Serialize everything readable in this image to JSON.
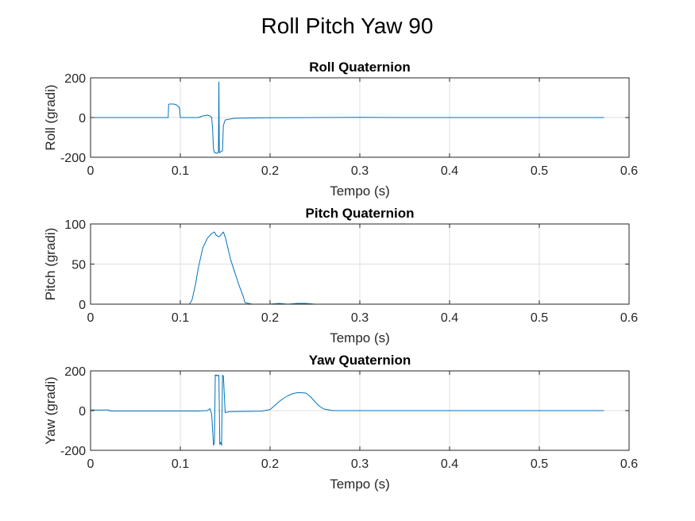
{
  "figure": {
    "title": "Roll Pitch Yaw 90",
    "line_color": "#0072BD"
  },
  "chart_data": [
    {
      "type": "line",
      "title": "Roll Quaternion",
      "xlabel": "Tempo (s)",
      "ylabel": "Roll (gradi)",
      "xlim": [
        0,
        0.6
      ],
      "ylim": [
        -200,
        200
      ],
      "xticks": [
        0,
        0.1,
        0.2,
        0.3,
        0.4,
        0.5,
        0.6
      ],
      "xtick_labels": [
        "0",
        "0.1",
        "0.2",
        "0.3",
        "0.4",
        "0.5",
        "0.6"
      ],
      "yticks": [
        -200,
        0,
        200
      ],
      "ytick_labels": [
        "-200",
        "0",
        "200"
      ],
      "grid": true,
      "series": [
        {
          "x": [
            0,
            0.085,
            0.0865,
            0.087,
            0.0875,
            0.09,
            0.093,
            0.096,
            0.098,
            0.099,
            0.1,
            0.12,
            0.125,
            0.13,
            0.133,
            0.135,
            0.136,
            0.137,
            0.138,
            0.14,
            0.142,
            0.1425,
            0.143,
            0.1435,
            0.144,
            0.145,
            0.146,
            0.147,
            0.148,
            0.15,
            0.155,
            0.16,
            0.18,
            0.2,
            0.25,
            0.3,
            0.35,
            0.4,
            0.45,
            0.5,
            0.55,
            0.572
          ],
          "y": [
            0,
            0,
            0,
            65,
            68,
            68,
            68,
            63,
            55,
            50,
            0,
            0,
            8,
            12,
            8,
            0,
            -60,
            -160,
            -175,
            -180,
            -178,
            -170,
            180,
            -175,
            -178,
            -172,
            -170,
            -165,
            -40,
            -12,
            -8,
            -4,
            -2,
            -1,
            0,
            1,
            0,
            0,
            0,
            0,
            0,
            0
          ]
        }
      ]
    },
    {
      "type": "line",
      "title": "Pitch Quaternion",
      "xlabel": "Tempo (s)",
      "ylabel": "Pitch (gradi)",
      "xlim": [
        0,
        0.6
      ],
      "ylim": [
        0,
        100
      ],
      "xticks": [
        0,
        0.1,
        0.2,
        0.3,
        0.4,
        0.5,
        0.6
      ],
      "xtick_labels": [
        "0",
        "0.1",
        "0.2",
        "0.3",
        "0.4",
        "0.5",
        "0.6"
      ],
      "yticks": [
        0,
        50,
        100
      ],
      "ytick_labels": [
        "0",
        "50",
        "100"
      ],
      "grid": true,
      "series": [
        {
          "x": [
            0,
            0.05,
            0.1,
            0.11,
            0.113,
            0.117,
            0.12,
            0.125,
            0.13,
            0.135,
            0.138,
            0.14,
            0.143,
            0.145,
            0.148,
            0.15,
            0.153,
            0.156,
            0.16,
            0.165,
            0.17,
            0.172,
            0.18,
            0.2,
            0.21,
            0.22,
            0.23,
            0.24,
            0.25,
            0.3,
            0.4,
            0.5,
            0.572
          ],
          "y": [
            0,
            0,
            0,
            0,
            5,
            25,
            45,
            70,
            82,
            88,
            90,
            86,
            84,
            86,
            90,
            84,
            70,
            56,
            42,
            25,
            10,
            2,
            0,
            0,
            1,
            0,
            1,
            1,
            0,
            0,
            0,
            0,
            0
          ]
        }
      ]
    },
    {
      "type": "line",
      "title": "Yaw Quaternion",
      "xlabel": "Tempo (s)",
      "ylabel": "Yaw (gradi)",
      "xlim": [
        0,
        0.6
      ],
      "ylim": [
        -200,
        200
      ],
      "xticks": [
        0,
        0.1,
        0.2,
        0.3,
        0.4,
        0.5,
        0.6
      ],
      "xtick_labels": [
        "0",
        "0.1",
        "0.2",
        "0.3",
        "0.4",
        "0.5",
        "0.6"
      ],
      "yticks": [
        -200,
        0,
        200
      ],
      "ytick_labels": [
        "-200",
        "0",
        "200"
      ],
      "grid": true,
      "series": [
        {
          "x": [
            0,
            0.02,
            0.022,
            0.1,
            0.12,
            0.13,
            0.133,
            0.135,
            0.136,
            0.137,
            0.138,
            0.139,
            0.14,
            0.141,
            0.142,
            0.143,
            0.144,
            0.145,
            0.146,
            0.147,
            0.148,
            0.15,
            0.155,
            0.19,
            0.2,
            0.205,
            0.21,
            0.215,
            0.22,
            0.225,
            0.23,
            0.235,
            0.24,
            0.245,
            0.25,
            0.255,
            0.26,
            0.27,
            0.3,
            0.4,
            0.5,
            0.572
          ],
          "y": [
            3,
            3,
            -2,
            -2,
            -2,
            0,
            10,
            -20,
            -100,
            -175,
            -160,
            180,
            175,
            180,
            175,
            178,
            -170,
            -160,
            -175,
            178,
            175,
            -10,
            -5,
            -3,
            5,
            25,
            45,
            62,
            75,
            85,
            90,
            90,
            88,
            70,
            45,
            22,
            8,
            0,
            0,
            0,
            0,
            0
          ]
        }
      ]
    }
  ]
}
